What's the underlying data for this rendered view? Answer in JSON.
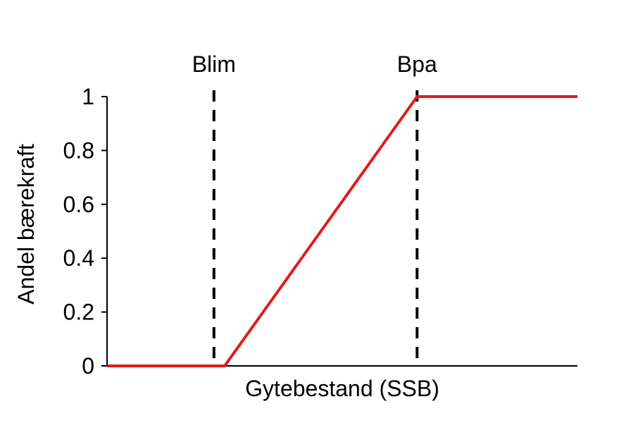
{
  "chart_data": {
    "type": "line",
    "title": "",
    "xlabel": "Gytebestand (SSB)",
    "ylabel": "Andel bærekraft",
    "ylim": [
      0,
      1
    ],
    "yticks": [
      "0",
      "0.2",
      "0.4",
      "0.6",
      "0.8",
      "1"
    ],
    "ytick_values": [
      0,
      0.2,
      0.4,
      0.6,
      0.8,
      1
    ],
    "x_tick_labels_shown": false,
    "grid": false,
    "legend": "none",
    "series": [
      {
        "color": "#e31a1c",
        "x": [
          0,
          1.1,
          2.9,
          4.4
        ],
        "y": [
          0,
          0,
          1,
          1
        ]
      }
    ],
    "xlim": [
      0,
      4.4
    ],
    "reference_lines": [
      {
        "label": "Blim",
        "x": 1.0,
        "color": "#000000",
        "style": "dashed"
      },
      {
        "label": "Bpa",
        "x": 2.9,
        "color": "#000000",
        "style": "dashed"
      }
    ]
  }
}
